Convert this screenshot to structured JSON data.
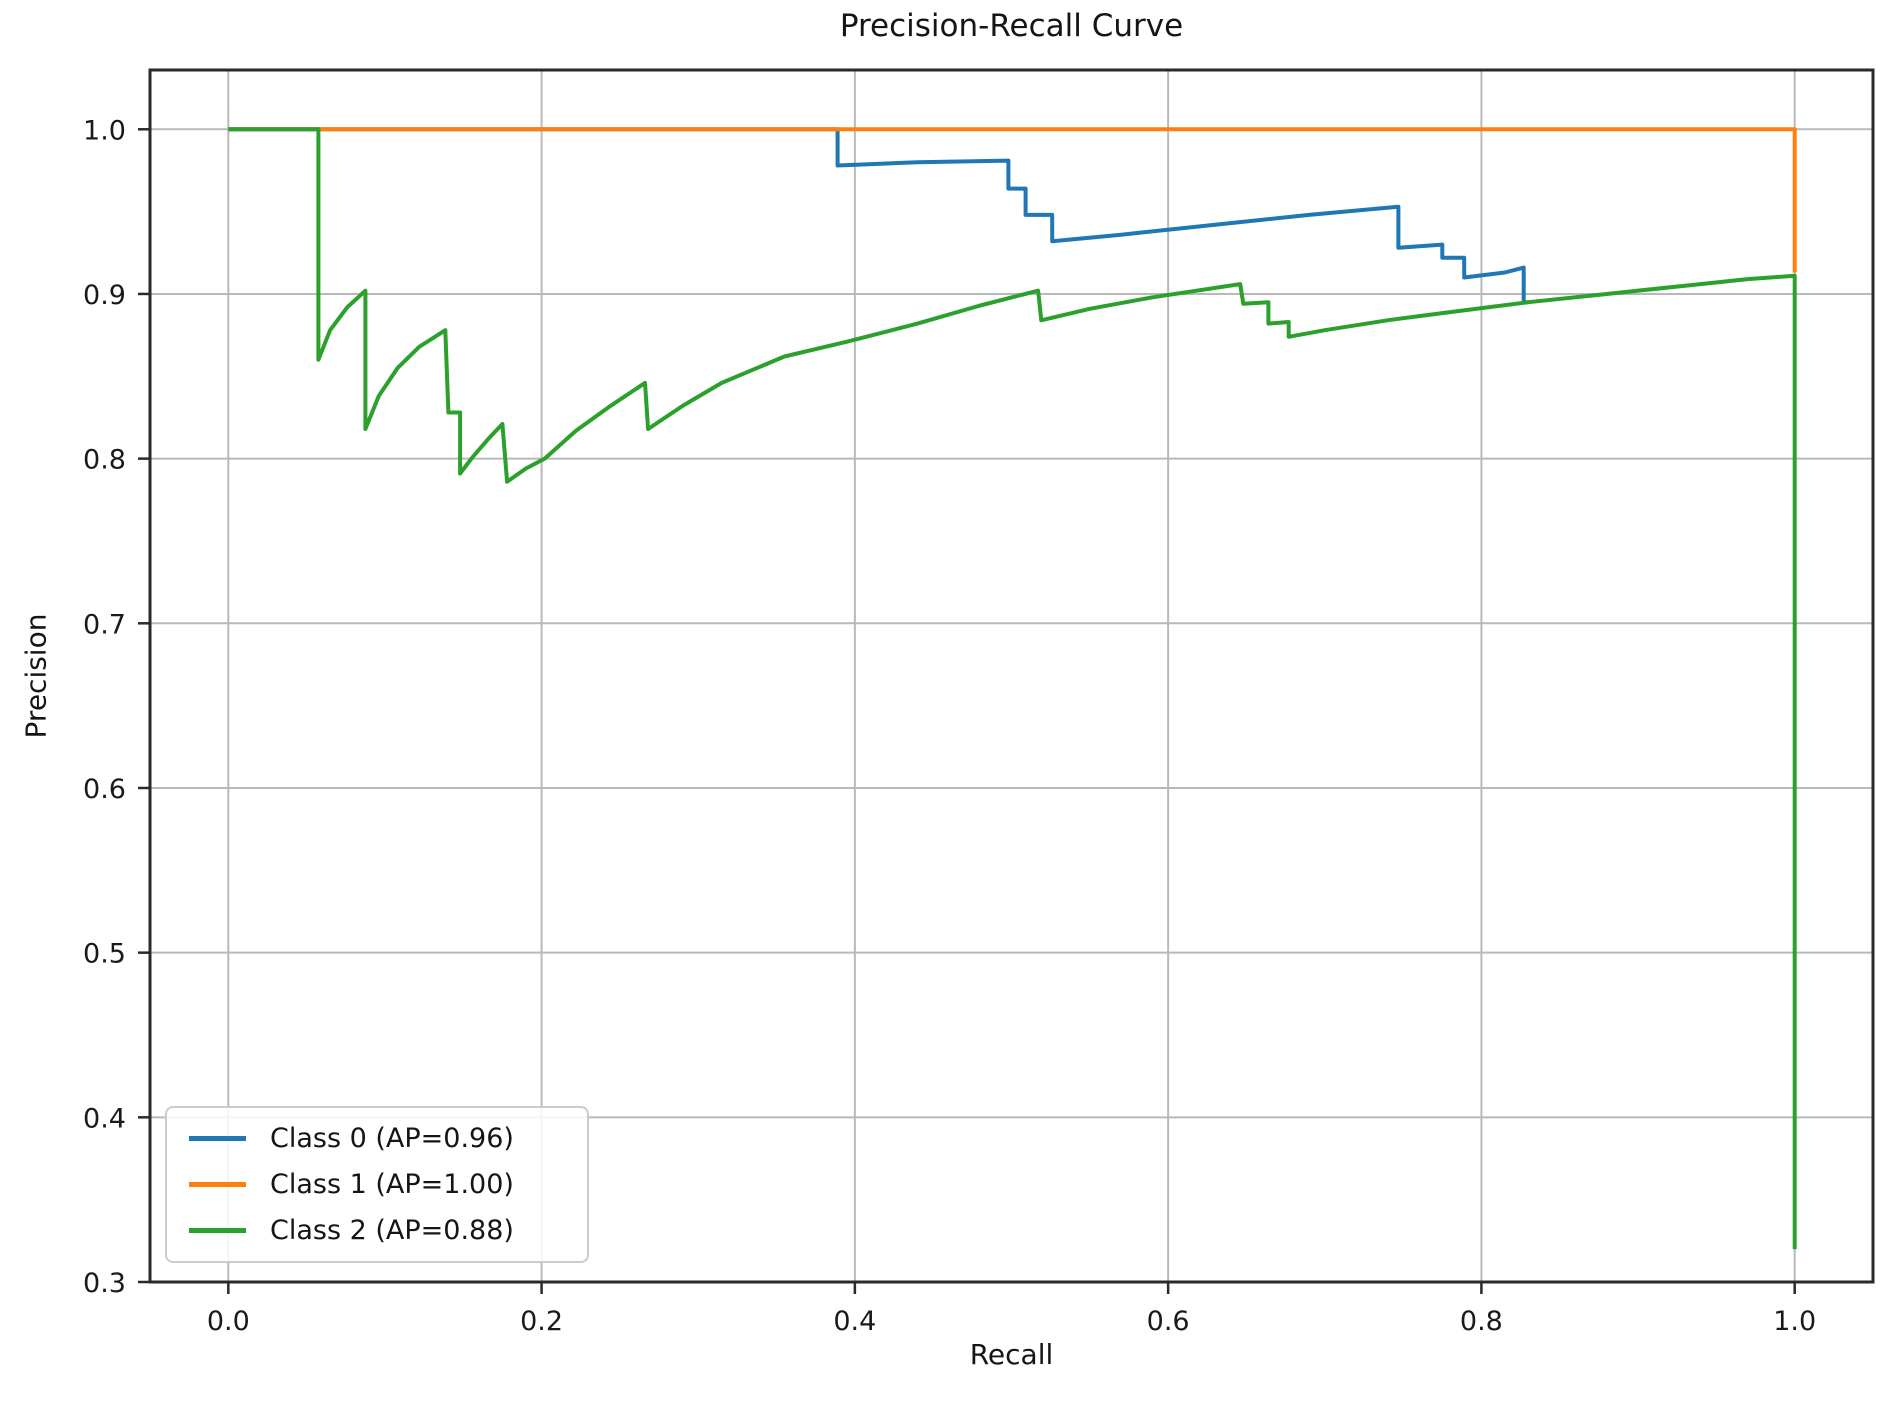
{
  "chart_data": {
    "type": "line",
    "title": "Precision-Recall Curve",
    "xlabel": "Recall",
    "ylabel": "Precision",
    "xlim": [
      -0.05,
      1.05
    ],
    "ylim": [
      0.3,
      1.036
    ],
    "grid": true,
    "legend_position": "lower left",
    "x_ticks": [
      {
        "value": 0.0,
        "label": "0.0"
      },
      {
        "value": 0.2,
        "label": "0.2"
      },
      {
        "value": 0.4,
        "label": "0.4"
      },
      {
        "value": 0.6,
        "label": "0.6"
      },
      {
        "value": 0.8,
        "label": "0.8"
      },
      {
        "value": 1.0,
        "label": "1.0"
      }
    ],
    "y_ticks": [
      {
        "value": 0.3,
        "label": "0.3"
      },
      {
        "value": 0.4,
        "label": "0.4"
      },
      {
        "value": 0.5,
        "label": "0.5"
      },
      {
        "value": 0.6,
        "label": "0.6"
      },
      {
        "value": 0.7,
        "label": "0.7"
      },
      {
        "value": 0.8,
        "label": "0.8"
      },
      {
        "value": 0.9,
        "label": "0.9"
      },
      {
        "value": 1.0,
        "label": "1.0"
      }
    ],
    "colors": {
      "grid": "#b9b9b9",
      "spine": "#2a2a2a",
      "tick_text": "#1a1a1a",
      "background": "#ffffff",
      "legend_border": "#cccccc"
    },
    "series": [
      {
        "name": "class-0",
        "label": "Class 0 (AP=0.96)",
        "ap": 0.96,
        "color": "#1f77b4",
        "points": [
          [
            0.0,
            1.0
          ],
          [
            0.389,
            1.0
          ],
          [
            0.389,
            0.978
          ],
          [
            0.44,
            0.98
          ],
          [
            0.498,
            0.981
          ],
          [
            0.498,
            0.964
          ],
          [
            0.509,
            0.964
          ],
          [
            0.509,
            0.948
          ],
          [
            0.526,
            0.948
          ],
          [
            0.526,
            0.932
          ],
          [
            0.57,
            0.936
          ],
          [
            0.63,
            0.942
          ],
          [
            0.69,
            0.948
          ],
          [
            0.747,
            0.953
          ],
          [
            0.747,
            0.928
          ],
          [
            0.775,
            0.93
          ],
          [
            0.775,
            0.922
          ],
          [
            0.789,
            0.922
          ],
          [
            0.789,
            0.91
          ],
          [
            0.815,
            0.913
          ],
          [
            0.827,
            0.916
          ],
          [
            0.827,
            0.895
          ],
          [
            0.83,
            0.895
          ]
        ]
      },
      {
        "name": "class-1",
        "label": "Class 1 (AP=1.00)",
        "ap": 1.0,
        "color": "#ff7f0e",
        "points": [
          [
            0.0,
            1.0
          ],
          [
            1.0,
            1.0
          ],
          [
            1.0,
            0.913
          ]
        ]
      },
      {
        "name": "class-2",
        "label": "Class 2 (AP=0.88)",
        "ap": 0.88,
        "color": "#2ca02c",
        "points": [
          [
            0.0,
            1.0
          ],
          [
            0.0575,
            1.0
          ],
          [
            0.0575,
            0.86
          ],
          [
            0.065,
            0.878
          ],
          [
            0.076,
            0.892
          ],
          [
            0.0875,
            0.902
          ],
          [
            0.0875,
            0.818
          ],
          [
            0.096,
            0.838
          ],
          [
            0.108,
            0.855
          ],
          [
            0.122,
            0.868
          ],
          [
            0.1385,
            0.878
          ],
          [
            0.1405,
            0.828
          ],
          [
            0.148,
            0.828
          ],
          [
            0.148,
            0.791
          ],
          [
            0.156,
            0.801
          ],
          [
            0.166,
            0.812
          ],
          [
            0.175,
            0.821
          ],
          [
            0.178,
            0.786
          ],
          [
            0.19,
            0.794
          ],
          [
            0.202,
            0.8
          ],
          [
            0.222,
            0.817
          ],
          [
            0.244,
            0.832
          ],
          [
            0.266,
            0.846
          ],
          [
            0.268,
            0.818
          ],
          [
            0.29,
            0.832
          ],
          [
            0.315,
            0.846
          ],
          [
            0.355,
            0.862
          ],
          [
            0.395,
            0.871
          ],
          [
            0.44,
            0.882
          ],
          [
            0.48,
            0.893
          ],
          [
            0.517,
            0.902
          ],
          [
            0.519,
            0.884
          ],
          [
            0.55,
            0.891
          ],
          [
            0.59,
            0.898
          ],
          [
            0.646,
            0.906
          ],
          [
            0.648,
            0.894
          ],
          [
            0.664,
            0.895
          ],
          [
            0.664,
            0.882
          ],
          [
            0.677,
            0.883
          ],
          [
            0.677,
            0.874
          ],
          [
            0.7,
            0.878
          ],
          [
            0.74,
            0.884
          ],
          [
            0.78,
            0.889
          ],
          [
            0.83,
            0.895
          ],
          [
            0.88,
            0.9
          ],
          [
            0.93,
            0.905
          ],
          [
            0.97,
            0.909
          ],
          [
            1.0,
            0.911
          ],
          [
            1.0,
            0.32
          ]
        ]
      }
    ]
  }
}
